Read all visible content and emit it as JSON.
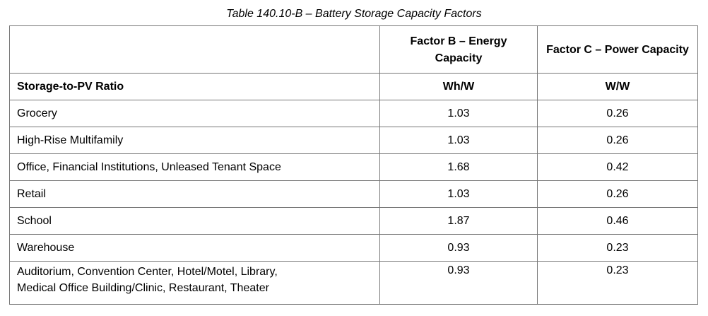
{
  "caption": "Table 140.10-B – Battery Storage Capacity Factors",
  "header": {
    "col_b": "Factor B – Energy Capacity",
    "col_c": "Factor C – Power Capacity",
    "row_label": "Storage-to-PV Ratio",
    "unit_b": "Wh/W",
    "unit_c": "W/W"
  },
  "rows": [
    {
      "name": "Grocery",
      "b": "1.03",
      "c": "0.26"
    },
    {
      "name": "High-Rise Multifamily",
      "b": "1.03",
      "c": "0.26"
    },
    {
      "name": "Office, Financial Institutions, Unleased Tenant Space",
      "b": "1.68",
      "c": "0.42"
    },
    {
      "name": "Retail",
      "b": "1.03",
      "c": "0.26"
    },
    {
      "name": "School",
      "b": "1.87",
      "c": "0.46"
    },
    {
      "name": "Warehouse",
      "b": "0.93",
      "c": "0.23"
    },
    {
      "name_line1": "Auditorium, Convention Center, Hotel/Motel, Library,",
      "name_line2": "Medical Office Building/Clinic, Restaurant, Theater",
      "b": "0.93",
      "c": "0.23"
    }
  ]
}
